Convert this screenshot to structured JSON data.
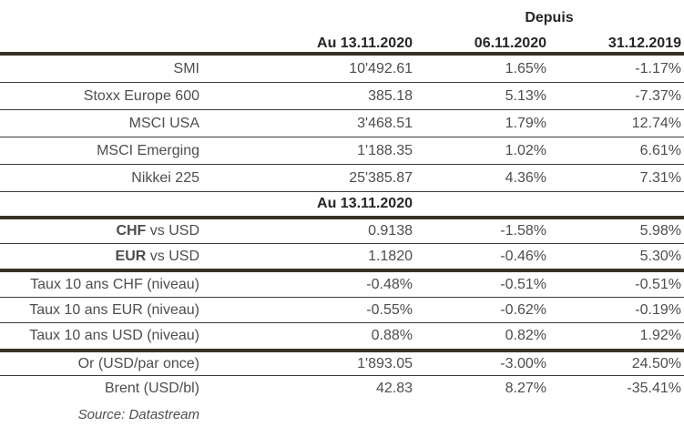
{
  "header": {
    "depuis": "Depuis",
    "columns": [
      "Au 13.11.2020",
      "06.11.2020",
      "31.12.2019"
    ]
  },
  "subheader": "Au 13.11.2020",
  "rows": [
    {
      "label": "SMI",
      "v1": "10'492.61",
      "v2": "1.65%",
      "v3": "-1.17%"
    },
    {
      "label": "Stoxx Europe 600",
      "v1": "385.18",
      "v2": "5.13%",
      "v3": "-7.37%"
    },
    {
      "label": "MSCI USA",
      "v1": "3'468.51",
      "v2": "1.79%",
      "v3": "12.74%"
    },
    {
      "label": "MSCI Emerging",
      "v1": "1'188.35",
      "v2": "1.02%",
      "v3": "6.61%"
    },
    {
      "label": "Nikkei 225",
      "v1": "25'385.87",
      "v2": "4.36%",
      "v3": "7.31%"
    },
    {
      "label_strong": "CHF",
      "label": " vs USD",
      "v1": "0.9138",
      "v2": "-1.58%",
      "v3": "5.98%"
    },
    {
      "label_strong": "EUR",
      "label": " vs USD",
      "v1": "1.1820",
      "v2": "-0.46%",
      "v3": "5.30%"
    },
    {
      "label": "Taux 10 ans CHF (niveau)",
      "v1": "-0.48%",
      "v2": "-0.51%",
      "v3": "-0.51%"
    },
    {
      "label": "Taux 10 ans EUR (niveau)",
      "v1": "-0.55%",
      "v2": "-0.62%",
      "v3": "-0.19%"
    },
    {
      "label": "Taux 10 ans USD (niveau)",
      "v1": "0.88%",
      "v2": "0.82%",
      "v3": "1.92%"
    },
    {
      "label": "Or (USD/par once)",
      "v1": "1'893.05",
      "v2": "-3.00%",
      "v3": "24.50%"
    },
    {
      "label": "Brent (USD/bl)",
      "v1": "42.83",
      "v2": "8.27%",
      "v3": "-35.41%"
    }
  ],
  "source": "Source: Datastream",
  "colors": {
    "thick_rule": "#3a3128",
    "thin_rule": "#3d3d3d",
    "text": "#4d4d4d",
    "text_strong": "#262626"
  }
}
